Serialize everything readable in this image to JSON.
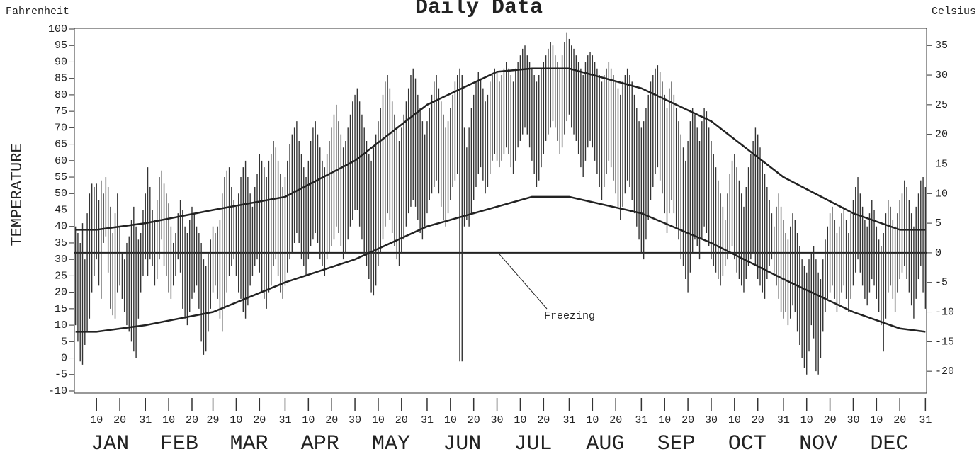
{
  "chart_data": {
    "type": "range_bar",
    "title": "Daily Data",
    "left_axis_label": "Fahrenheit",
    "right_axis_label": "Celsius",
    "ylabel": "TEMPERATURE",
    "ylim": [
      -10,
      100
    ],
    "yticks": [
      -10,
      -5,
      0,
      5,
      10,
      15,
      20,
      25,
      30,
      35,
      40,
      45,
      50,
      55,
      60,
      65,
      70,
      75,
      80,
      85,
      90,
      95,
      100
    ],
    "y2lim": [
      -23.33,
      37.78
    ],
    "y2ticks": [
      -20,
      -15,
      -10,
      -5,
      0,
      5,
      10,
      15,
      20,
      25,
      30,
      35
    ],
    "xlim": [
      0.5,
      366.5
    ],
    "xticks": [
      10,
      20,
      31,
      {
        "value": 41,
        "label": "10"
      },
      {
        "value": 51,
        "label": "20"
      },
      {
        "value": 60,
        "label": "29"
      },
      {
        "value": 70,
        "label": "10"
      },
      {
        "value": 80,
        "label": "20"
      },
      {
        "value": 91,
        "label": "31"
      },
      {
        "value": 101,
        "label": "10"
      },
      {
        "value": 111,
        "label": "20"
      },
      {
        "value": 121,
        "label": "30"
      },
      {
        "value": 131,
        "label": "10"
      },
      {
        "value": 141,
        "label": "20"
      },
      {
        "value": 152,
        "label": "31"
      },
      {
        "value": 162,
        "label": "10"
      },
      {
        "value": 172,
        "label": "20"
      },
      {
        "value": 182,
        "label": "30"
      },
      {
        "value": 192,
        "label": "10"
      },
      {
        "value": 202,
        "label": "20"
      },
      {
        "value": 213,
        "label": "31"
      },
      {
        "value": 223,
        "label": "10"
      },
      {
        "value": 233,
        "label": "20"
      },
      {
        "value": 244,
        "label": "31"
      },
      {
        "value": 254,
        "label": "10"
      },
      {
        "value": 264,
        "label": "20"
      },
      {
        "value": 274,
        "label": "30"
      },
      {
        "value": 284,
        "label": "10"
      },
      {
        "value": 294,
        "label": "20"
      },
      {
        "value": 305,
        "label": "31"
      },
      {
        "value": 315,
        "label": "10"
      },
      {
        "value": 325,
        "label": "20"
      },
      {
        "value": 335,
        "label": "30"
      },
      {
        "value": 345,
        "label": "10"
      },
      {
        "value": 355,
        "label": "20"
      },
      {
        "value": 366,
        "label": "31"
      }
    ],
    "month_labels": [
      "JAN",
      "FEB",
      "MAR",
      "APR",
      "MAY",
      "JUN",
      "JUL",
      "AUG",
      "SEP",
      "OCT",
      "NOV",
      "DEC"
    ],
    "color": "#333333",
    "x": [
      1,
      2,
      3,
      4,
      5,
      6,
      7,
      8,
      9,
      10,
      11,
      12,
      13,
      14,
      15,
      16,
      17,
      18,
      19,
      20,
      21,
      22,
      23,
      24,
      25,
      26,
      27,
      28,
      29,
      30,
      31,
      32,
      33,
      34,
      35,
      36,
      37,
      38,
      39,
      40,
      41,
      42,
      43,
      44,
      45,
      46,
      47,
      48,
      49,
      50,
      51,
      52,
      53,
      54,
      55,
      56,
      57,
      58,
      59,
      60,
      61,
      62,
      63,
      64,
      65,
      66,
      67,
      68,
      69,
      70,
      71,
      72,
      73,
      74,
      75,
      76,
      77,
      78,
      79,
      80,
      81,
      82,
      83,
      84,
      85,
      86,
      87,
      88,
      89,
      90,
      91,
      92,
      93,
      94,
      95,
      96,
      97,
      98,
      99,
      100,
      101,
      102,
      103,
      104,
      105,
      106,
      107,
      108,
      109,
      110,
      111,
      112,
      113,
      114,
      115,
      116,
      117,
      118,
      119,
      120,
      121,
      122,
      123,
      124,
      125,
      126,
      127,
      128,
      129,
      130,
      131,
      132,
      133,
      134,
      135,
      136,
      137,
      138,
      139,
      140,
      141,
      142,
      143,
      144,
      145,
      146,
      147,
      148,
      149,
      150,
      151,
      152,
      153,
      154,
      155,
      156,
      157,
      158,
      159,
      160,
      161,
      162,
      163,
      164,
      165,
      166,
      167,
      168,
      169,
      170,
      171,
      172,
      173,
      174,
      175,
      176,
      177,
      178,
      179,
      180,
      181,
      182,
      183,
      184,
      185,
      186,
      187,
      188,
      189,
      190,
      191,
      192,
      193,
      194,
      195,
      196,
      197,
      198,
      199,
      200,
      201,
      202,
      203,
      204,
      205,
      206,
      207,
      208,
      209,
      210,
      211,
      212,
      213,
      214,
      215,
      216,
      217,
      218,
      219,
      220,
      221,
      222,
      223,
      224,
      225,
      226,
      227,
      228,
      229,
      230,
      231,
      232,
      233,
      234,
      235,
      236,
      237,
      238,
      239,
      240,
      241,
      242,
      243,
      244,
      245,
      246,
      247,
      248,
      249,
      250,
      251,
      252,
      253,
      254,
      255,
      256,
      257,
      258,
      259,
      260,
      261,
      262,
      263,
      264,
      265,
      266,
      267,
      268,
      269,
      270,
      271,
      272,
      273,
      274,
      275,
      276,
      277,
      278,
      279,
      280,
      281,
      282,
      283,
      284,
      285,
      286,
      287,
      288,
      289,
      290,
      291,
      292,
      293,
      294,
      295,
      296,
      297,
      298,
      299,
      300,
      301,
      302,
      303,
      304,
      305,
      306,
      307,
      308,
      309,
      310,
      311,
      312,
      313,
      314,
      315,
      316,
      317,
      318,
      319,
      320,
      321,
      322,
      323,
      324,
      325,
      326,
      327,
      328,
      329,
      330,
      331,
      332,
      333,
      334,
      335,
      336,
      337,
      338,
      339,
      340,
      341,
      342,
      343,
      344,
      345,
      346,
      347,
      348,
      349,
      350,
      351,
      352,
      353,
      354,
      355,
      356,
      357,
      358,
      359,
      360,
      361,
      362,
      363,
      364,
      365,
      366
    ],
    "daily_high": [
      40,
      38,
      35,
      41,
      30,
      44,
      50,
      53,
      52,
      53,
      48,
      54,
      50,
      55,
      52,
      46,
      38,
      44,
      50,
      40,
      32,
      30,
      35,
      37,
      42,
      46,
      40,
      36,
      38,
      45,
      50,
      58,
      52,
      45,
      42,
      48,
      55,
      57,
      53,
      50,
      47,
      40,
      35,
      38,
      44,
      48,
      45,
      40,
      38,
      42,
      46,
      44,
      40,
      38,
      35,
      30,
      28,
      32,
      36,
      40,
      38,
      40,
      42,
      50,
      55,
      57,
      58,
      52,
      48,
      46,
      50,
      55,
      58,
      60,
      55,
      50,
      46,
      52,
      56,
      62,
      60,
      58,
      55,
      60,
      62,
      66,
      64,
      60,
      56,
      52,
      55,
      60,
      65,
      68,
      70,
      72,
      66,
      62,
      58,
      55,
      60,
      66,
      70,
      72,
      68,
      64,
      60,
      58,
      62,
      66,
      70,
      74,
      77,
      72,
      68,
      64,
      66,
      70,
      74,
      78,
      80,
      82,
      78,
      74,
      70,
      66,
      62,
      60,
      64,
      68,
      72,
      76,
      80,
      84,
      86,
      82,
      78,
      74,
      70,
      66,
      70,
      74,
      78,
      82,
      86,
      88,
      85,
      80,
      76,
      72,
      68,
      72,
      76,
      80,
      84,
      86,
      82,
      78,
      74,
      70,
      72,
      76,
      80,
      84,
      86,
      88,
      86,
      70,
      64,
      70,
      76,
      80,
      84,
      87,
      85,
      82,
      78,
      80,
      84,
      86,
      88,
      87,
      84,
      86,
      88,
      90,
      88,
      86,
      84,
      88,
      90,
      92,
      94,
      95,
      92,
      90,
      88,
      86,
      84,
      86,
      88,
      90,
      92,
      94,
      96,
      95,
      92,
      90,
      88,
      92,
      96,
      99,
      97,
      95,
      94,
      92,
      90,
      88,
      86,
      90,
      92,
      93,
      92,
      90,
      88,
      86,
      84,
      86,
      88,
      90,
      88,
      86,
      84,
      82,
      80,
      84,
      86,
      88,
      86,
      84,
      80,
      76,
      72,
      70,
      72,
      76,
      80,
      84,
      86,
      88,
      89,
      87,
      84,
      80,
      76,
      82,
      84,
      80,
      76,
      72,
      68,
      64,
      60,
      66,
      72,
      76,
      74,
      70,
      66,
      72,
      76,
      75,
      70,
      66,
      62,
      58,
      54,
      50,
      46,
      42,
      50,
      56,
      60,
      62,
      58,
      54,
      50,
      46,
      52,
      58,
      62,
      66,
      70,
      68,
      64,
      60,
      56,
      52,
      48,
      44,
      40,
      46,
      50,
      46,
      42,
      38,
      36,
      40,
      44,
      42,
      38,
      34,
      30,
      28,
      26,
      30,
      32,
      34,
      30,
      26,
      24,
      30,
      36,
      40,
      44,
      46,
      42,
      38,
      40,
      44,
      46,
      42,
      38,
      44,
      48,
      52,
      55,
      50,
      46,
      42,
      40,
      44,
      48,
      45,
      40,
      36,
      34,
      38,
      44,
      48,
      46,
      42,
      40,
      44,
      48,
      50,
      54,
      52,
      48,
      44,
      40,
      46,
      50,
      54,
      55,
      52
    ],
    "daily_low": [
      10,
      5,
      -1,
      -2,
      4,
      8,
      12,
      20,
      25,
      30,
      22,
      18,
      35,
      37,
      26,
      15,
      13,
      12,
      20,
      22,
      18,
      14,
      10,
      8,
      5,
      2,
      0,
      12,
      20,
      25,
      30,
      25,
      30,
      28,
      22,
      24,
      30,
      36,
      28,
      25,
      20,
      18,
      22,
      25,
      30,
      26,
      15,
      12,
      10,
      14,
      18,
      20,
      22,
      15,
      5,
      1,
      2,
      8,
      15,
      20,
      22,
      18,
      12,
      8,
      15,
      20,
      25,
      28,
      30,
      25,
      20,
      18,
      14,
      12,
      16,
      22,
      25,
      28,
      30,
      26,
      20,
      18,
      15,
      20,
      22,
      28,
      30,
      25,
      20,
      18,
      22,
      26,
      30,
      32,
      35,
      38,
      35,
      30,
      28,
      25,
      30,
      34,
      36,
      38,
      35,
      30,
      28,
      25,
      30,
      32,
      34,
      36,
      40,
      38,
      34,
      30,
      32,
      36,
      40,
      42,
      45,
      45,
      40,
      36,
      32,
      28,
      24,
      20,
      19,
      22,
      28,
      32,
      36,
      40,
      44,
      42,
      38,
      34,
      30,
      28,
      32,
      36,
      40,
      44,
      46,
      48,
      46,
      42,
      38,
      36,
      40,
      44,
      48,
      50,
      52,
      54,
      50,
      46,
      42,
      40,
      44,
      48,
      52,
      54,
      56,
      -1,
      -1,
      40,
      42,
      40,
      44,
      48,
      52,
      56,
      58,
      54,
      50,
      52,
      56,
      60,
      62,
      60,
      58,
      60,
      62,
      64,
      62,
      58,
      56,
      60,
      64,
      66,
      68,
      70,
      68,
      64,
      60,
      56,
      52,
      54,
      58,
      62,
      66,
      68,
      70,
      72,
      70,
      66,
      62,
      64,
      68,
      72,
      74,
      70,
      68,
      66,
      62,
      58,
      55,
      60,
      64,
      66,
      64,
      60,
      56,
      52,
      48,
      52,
      56,
      60,
      58,
      54,
      50,
      46,
      42,
      46,
      50,
      54,
      52,
      48,
      44,
      40,
      36,
      32,
      30,
      36,
      42,
      48,
      52,
      56,
      58,
      54,
      50,
      44,
      38,
      44,
      48,
      44,
      40,
      36,
      30,
      28,
      24,
      20,
      26,
      32,
      36,
      34,
      30,
      36,
      40,
      38,
      34,
      30,
      28,
      26,
      24,
      22,
      25,
      28,
      30,
      32,
      34,
      30,
      26,
      24,
      22,
      20,
      24,
      28,
      30,
      32,
      28,
      24,
      22,
      20,
      18,
      24,
      28,
      30,
      26,
      22,
      18,
      14,
      12,
      14,
      10,
      12,
      16,
      14,
      8,
      4,
      0,
      -3,
      -5,
      2,
      10,
      6,
      -4,
      -5,
      0,
      8,
      14,
      18,
      20,
      22,
      18,
      14,
      16,
      20,
      22,
      18,
      14,
      18,
      22,
      26,
      30,
      26,
      22,
      18,
      16,
      20,
      24,
      22,
      18,
      14,
      10,
      2,
      12,
      20,
      22,
      18,
      14,
      20,
      24,
      26,
      28,
      24,
      20,
      16,
      12,
      18,
      24,
      28,
      20,
      15
    ],
    "normal_high": {
      "x": [
        1,
        10,
        31,
        60,
        91,
        121,
        152,
        182,
        197,
        213,
        244,
        274,
        305,
        335,
        355,
        366
      ],
      "values": [
        39,
        39,
        41,
        45,
        49,
        60,
        77,
        87,
        88,
        88,
        82,
        72,
        55,
        44,
        39,
        39
      ]
    },
    "normal_low": {
      "x": [
        1,
        10,
        31,
        60,
        91,
        121,
        152,
        182,
        197,
        213,
        244,
        274,
        305,
        335,
        355,
        366
      ],
      "values": [
        8,
        8,
        10,
        14,
        23,
        30,
        40,
        46,
        49,
        49,
        44,
        35,
        24,
        14,
        9,
        8
      ]
    },
    "freezing": {
      "value": 32,
      "label": "Freezing"
    }
  }
}
